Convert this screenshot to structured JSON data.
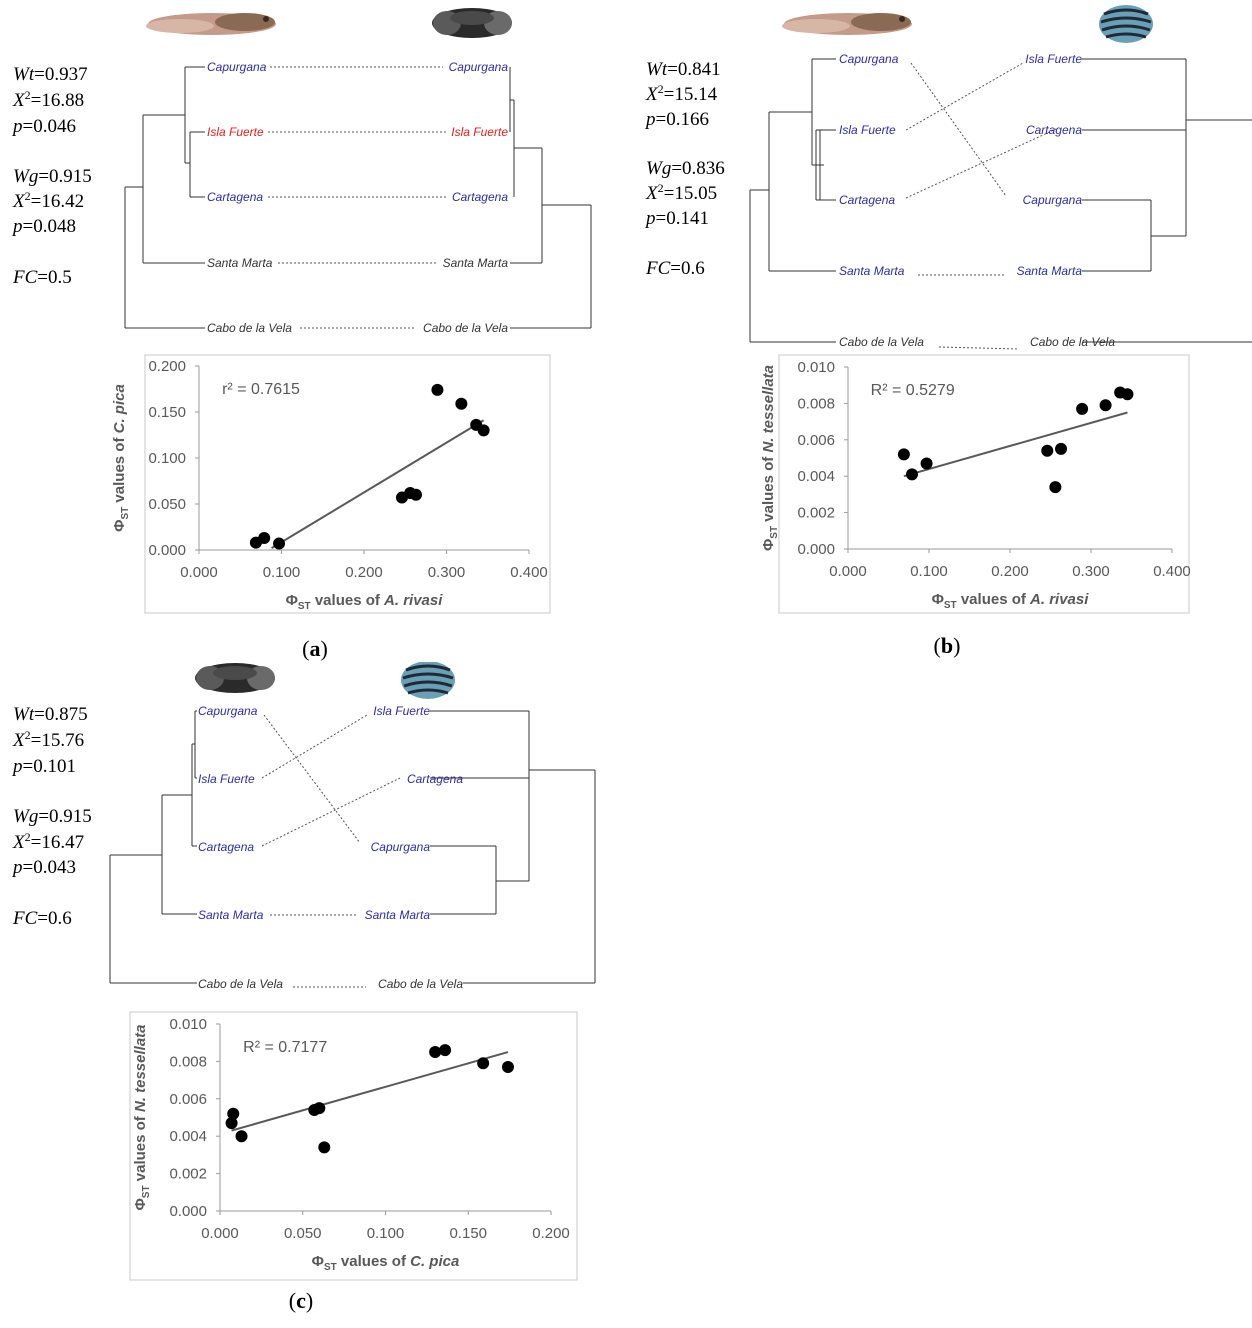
{
  "panels": [
    {
      "id": "a",
      "caption_letter": "a",
      "stats": {
        "wt_sym": "Wt",
        "wt_val": "=0.937",
        "x2t_val": "=16.88",
        "pt_val": "=0.046",
        "wg_sym": "Wg",
        "wg_val": "=0.915",
        "x2g_val": "=16.42",
        "pg_val": "=0.048",
        "fc_sym": "FC",
        "fc_val": "=0.5",
        "x_sym": "X",
        "x_sup": "2",
        "p_sym": "p"
      },
      "tanglegram": {
        "left_species_image": "blenny-fish-photo",
        "right_species_image": "dark-blenny-fish-photo",
        "left_labels": [
          "Capurgana",
          "Isla Fuerte",
          "Cartagena",
          "Santa Marta",
          "Cabo de la Vela"
        ],
        "right_labels": [
          "Capurgana",
          "Isla Fuerte",
          "Cartagena",
          "Santa Marta",
          "Cabo de la Vela"
        ],
        "label_colors": [
          "#2e2e9a",
          "#e02020",
          "#2e2e9a",
          "#333333",
          "#333333"
        ],
        "right_label_colors": [
          "#2e2e9a",
          "#e02020",
          "#2e2e9a",
          "#333333",
          "#333333"
        ]
      },
      "chart_data": {
        "type": "scatter",
        "x": [
          0.069,
          0.079,
          0.097,
          0.246,
          0.256,
          0.263,
          0.289,
          0.318,
          0.336,
          0.345
        ],
        "y": [
          0.008,
          0.013,
          0.007,
          0.057,
          0.062,
          0.06,
          0.174,
          0.159,
          0.136,
          0.13
        ],
        "trendline": {
          "x": [
            0.088,
            0.345
          ],
          "y": [
            0.002,
            0.141
          ]
        },
        "annotation": "r² = 0.7615",
        "ylabel_prefix": "Φ",
        "ylabel_sub": "ST",
        "ylabel_text": "  values of ",
        "ylabel_species": "C. pica",
        "xlabel_prefix": "Φ",
        "xlabel_sub": "ST",
        "xlabel_text": " values  of ",
        "xlabel_species": "A. rivasi",
        "xlim": [
          0,
          0.4
        ],
        "ylim": [
          0,
          0.2
        ],
        "xticks": [
          "0.000",
          "0.100",
          "0.200",
          "0.300",
          "0.400"
        ],
        "yticks": [
          "0.000",
          "0.050",
          "0.100",
          "0.150",
          "0.200"
        ],
        "grid": false
      }
    },
    {
      "id": "b",
      "caption_letter": "b",
      "stats": {
        "wt_sym": "Wt",
        "wt_val": "=0.841",
        "x2t_val": "=15.14",
        "pt_val": "=0.166",
        "wg_sym": "Wg",
        "wg_val": "=0.836",
        "x2g_val": "=15.05",
        "pg_val": "=0.141",
        "fc_sym": "FC",
        "fc_val": "=0.6",
        "x_sym": "X",
        "x_sup": "2",
        "p_sym": "p"
      },
      "tanglegram": {
        "left_species_image": "blenny-fish-photo",
        "right_species_image": "nerite-snail-shell-photo",
        "left_labels": [
          "Capurgana",
          "Isla Fuerte",
          "Cartagena",
          "Santa Marta",
          "Cabo de la Vela"
        ],
        "right_labels": [
          "Isla Fuerte",
          "Cartagena",
          "Capurgana",
          "Santa Marta",
          "Cabo de la Vela"
        ],
        "label_colors": [
          "#2e2e9a",
          "#2e2e9a",
          "#2e2e9a",
          "#2e2e9a",
          "#333333"
        ],
        "right_label_colors": [
          "#2e2e9a",
          "#2e2e9a",
          "#2e2e9a",
          "#2e2e9a",
          "#333333"
        ]
      },
      "chart_data": {
        "type": "scatter",
        "x": [
          0.069,
          0.079,
          0.097,
          0.246,
          0.256,
          0.263,
          0.289,
          0.318,
          0.336,
          0.345
        ],
        "y": [
          0.0052,
          0.0041,
          0.0047,
          0.0054,
          0.0034,
          0.0055,
          0.0077,
          0.0079,
          0.0086,
          0.0085
        ],
        "trendline": {
          "x": [
            0.069,
            0.345
          ],
          "y": [
            0.004,
            0.0075
          ]
        },
        "annotation": "R² = 0.5279",
        "ylabel_prefix": "Φ",
        "ylabel_sub": "ST",
        "ylabel_text": "  values of ",
        "ylabel_species": "N. tessellata",
        "xlabel_prefix": "Φ",
        "xlabel_sub": "ST",
        "xlabel_text": " values  of ",
        "xlabel_species": "A. rivasi",
        "xlim": [
          0,
          0.4
        ],
        "ylim": [
          0,
          0.01
        ],
        "xticks": [
          "0.000",
          "0.100",
          "0.200",
          "0.300",
          "0.400"
        ],
        "yticks": [
          "0.000",
          "0.002",
          "0.004",
          "0.006",
          "0.008",
          "0.010"
        ],
        "grid": false
      }
    },
    {
      "id": "c",
      "caption_letter": "c",
      "stats": {
        "wt_sym": "Wt",
        "wt_val": "=0.875",
        "x2t_val": "=15.76",
        "pt_val": "=0.101",
        "wg_sym": "Wg",
        "wg_val": "=0.915",
        "x2g_val": "=16.47",
        "pg_val": "=0.043",
        "fc_sym": "FC",
        "fc_val": "=0.6",
        "x_sym": "X",
        "x_sup": "2",
        "p_sym": "p"
      },
      "tanglegram": {
        "left_species_image": "dark-blenny-fish-photo",
        "right_species_image": "nerite-snail-shell-photo",
        "left_labels": [
          "Capurgana",
          "Isla Fuerte",
          "Cartagena",
          "Santa Marta",
          "Cabo de la Vela"
        ],
        "right_labels": [
          "Isla Fuerte",
          "Cartagena",
          "Capurgana",
          "Santa Marta",
          "Cabo de la Vela"
        ],
        "label_colors": [
          "#2e2e9a",
          "#2e2e9a",
          "#2e2e9a",
          "#2e2e9a",
          "#333333"
        ],
        "right_label_colors": [
          "#2e2e9a",
          "#2e2e9a",
          "#2e2e9a",
          "#2e2e9a",
          "#333333"
        ]
      },
      "chart_data": {
        "type": "scatter",
        "x": [
          0.007,
          0.008,
          0.013,
          0.057,
          0.06,
          0.063,
          0.13,
          0.136,
          0.159,
          0.174
        ],
        "y": [
          0.0047,
          0.0052,
          0.004,
          0.0054,
          0.0055,
          0.0034,
          0.0085,
          0.0086,
          0.0079,
          0.0077
        ],
        "trendline": {
          "x": [
            0.007,
            0.174
          ],
          "y": [
            0.0043,
            0.0085
          ]
        },
        "annotation": "R² = 0.7177",
        "ylabel_prefix": "Φ",
        "ylabel_sub": "ST",
        "ylabel_text": "  values of ",
        "ylabel_species": "N. tessellata",
        "xlabel_prefix": "Φ",
        "xlabel_sub": "ST",
        "xlabel_text": " values  of ",
        "xlabel_species": "C. pica",
        "xlim": [
          0,
          0.2
        ],
        "ylim": [
          0,
          0.01
        ],
        "xticks": [
          "0.000",
          "0.050",
          "0.100",
          "0.150",
          "0.200"
        ],
        "yticks": [
          "0.000",
          "0.002",
          "0.004",
          "0.006",
          "0.008",
          "0.010"
        ],
        "grid": false
      }
    }
  ],
  "caption_open": "(",
  "caption_close": ")"
}
